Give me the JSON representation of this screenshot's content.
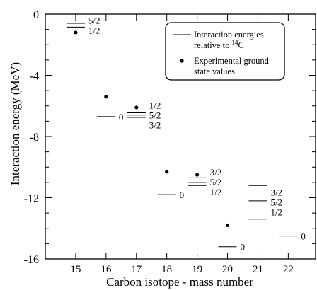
{
  "chart_data": {
    "type": "scatter",
    "xlabel": "Carbon isotope - mass number",
    "ylabel": "Interaction energy (MeV)",
    "xlim": [
      14,
      22.9
    ],
    "ylim": [
      -16,
      0
    ],
    "xticks": [
      "15",
      "16",
      "17",
      "18",
      "19",
      "20",
      "21",
      "22"
    ],
    "yticks": [
      "0",
      "-4",
      "-8",
      "-12",
      "-16"
    ],
    "legend": {
      "placement": "top-right",
      "line_entry": [
        "Interaction energies",
        "relative to ",
        "14",
        "C"
      ],
      "dot_entry": [
        "Experimental ground",
        "state values"
      ]
    },
    "series": [
      {
        "kind": "level-lines",
        "levels": [
          {
            "x": 15,
            "y": -0.6,
            "label": "5/2"
          },
          {
            "x": 15,
            "y": -0.85,
            "label": "1/2"
          },
          {
            "x": 16,
            "y": -6.7,
            "label": "0"
          },
          {
            "x": 17,
            "y": -6.45,
            "label": "1/2"
          },
          {
            "x": 17,
            "y": -6.6,
            "label": "5/2"
          },
          {
            "x": 17,
            "y": -6.75,
            "label": "3/2"
          },
          {
            "x": 18,
            "y": -11.8,
            "label": "0"
          },
          {
            "x": 19,
            "y": -10.7,
            "label": "3/2"
          },
          {
            "x": 19,
            "y": -11.0,
            "label": "5/2"
          },
          {
            "x": 19,
            "y": -11.2,
            "label": "1/2"
          },
          {
            "x": 21,
            "y": -11.2,
            "label": "3/2"
          },
          {
            "x": 21,
            "y": -12.2,
            "label": "5/2"
          },
          {
            "x": 21,
            "y": -13.4,
            "label": "1/2"
          },
          {
            "x": 22,
            "y": -14.5,
            "label": "0"
          },
          {
            "x": 20,
            "y": -15.2,
            "label": "0"
          }
        ]
      },
      {
        "kind": "points",
        "points": [
          {
            "x": 15,
            "y": -1.2
          },
          {
            "x": 16,
            "y": -5.4
          },
          {
            "x": 17,
            "y": -6.1
          },
          {
            "x": 18,
            "y": -10.3
          },
          {
            "x": 19,
            "y": -10.5
          },
          {
            "x": 20,
            "y": -13.8
          }
        ]
      }
    ]
  }
}
